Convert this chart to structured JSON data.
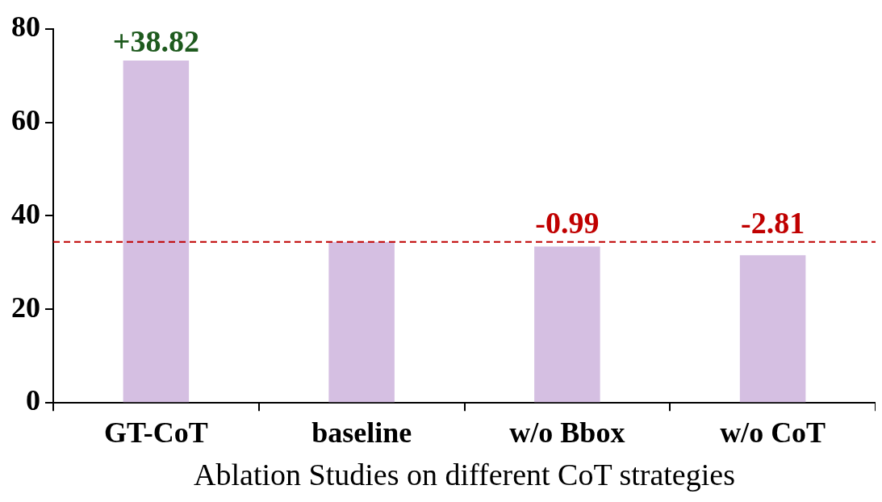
{
  "chart_data": {
    "type": "bar",
    "xlabel": "Ablation Studies on different CoT strategies",
    "categories": [
      "GT-CoT",
      "baseline",
      "w/o Bbox",
      "w/o CoT"
    ],
    "values": [
      73.22,
      34.4,
      33.41,
      31.59
    ],
    "color": "#d5bfe2",
    "ylim": [
      0,
      80
    ],
    "yticks": [
      0,
      20,
      40,
      60,
      80
    ],
    "grid": false,
    "legend": false,
    "ref_lines": [
      {
        "axis": "y",
        "value": 34.4,
        "color": "#c00000",
        "line_style": "dashed"
      }
    ],
    "annotations": [
      {
        "text": "+38.82",
        "x": "GT-CoT",
        "y": 73.22
      },
      {
        "text": "-0.99",
        "x": "w/o Bbox",
        "y": 33.41
      },
      {
        "text": "-2.81",
        "x": "w/o CoT",
        "y": 31.59
      }
    ]
  }
}
